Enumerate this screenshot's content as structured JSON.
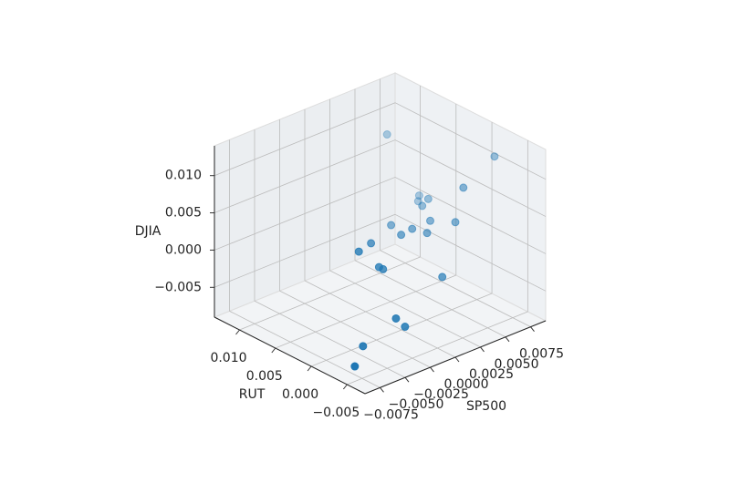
{
  "chart_data": {
    "type": "scatter3d",
    "xlabel": "SP500",
    "ylabel": "RUT",
    "zlabel": "DJIA",
    "color": "#1f77b4",
    "x": [
      0.0037,
      0.0084,
      0.0053,
      0.0054,
      0.0048,
      0.0053,
      0.0042,
      0.0011,
      0.0035,
      0.0045,
      0.0017,
      0.0006,
      0.0024,
      -0.0024,
      -0.0044,
      -0.0031,
      -0.0027,
      0.0017,
      -0.0037,
      -0.0028,
      -0.0062,
      -0.0078
    ],
    "y": [
      0.0072,
      -0.0012,
      -0.0012,
      0.0051,
      0.003,
      0.0051,
      0.003,
      0.003,
      0.0009,
      -0.0012,
      0.0009,
      0.0009,
      -0.0002,
      0.0009,
      -0.0002,
      -0.0012,
      -0.0012,
      -0.0033,
      -0.0044,
      -0.0044,
      -0.0033,
      -0.0044
    ],
    "z": [
      0.0117,
      0.0103,
      0.0078,
      0.0036,
      0.0045,
      0.0029,
      0.0039,
      0.003,
      0.0033,
      0.0036,
      0.0032,
      0.003,
      0.0028,
      0.0035,
      0.004,
      0.0017,
      0.0012,
      -0.0012,
      -0.0033,
      -0.0049,
      -0.0062,
      -0.0075
    ],
    "xlim": [
      -0.009,
      0.009
    ],
    "ylim": [
      -0.0075,
      0.0135
    ],
    "zlim": [
      -0.009,
      0.014
    ],
    "xticks": [
      {
        "value": -0.0075,
        "label": "−0.0075"
      },
      {
        "value": -0.005,
        "label": "−0.0050"
      },
      {
        "value": -0.0025,
        "label": "−0.0025"
      },
      {
        "value": 0,
        "label": "0.0000"
      },
      0.0025,
      {
        "value": 0.005,
        "label": "0.0050"
      },
      0.0075
    ],
    "yticks": [
      {
        "value": -0.005,
        "label": "−0.005"
      },
      {
        "value": 0,
        "label": "0.000"
      },
      0.005,
      {
        "value": 0.01,
        "label": "0.010"
      }
    ],
    "zticks": [
      {
        "value": -0.005,
        "label": "−0.005"
      },
      {
        "value": 0,
        "label": "0.000"
      },
      0.005,
      {
        "value": 0.01,
        "label": "0.010"
      }
    ],
    "grid": true
  }
}
